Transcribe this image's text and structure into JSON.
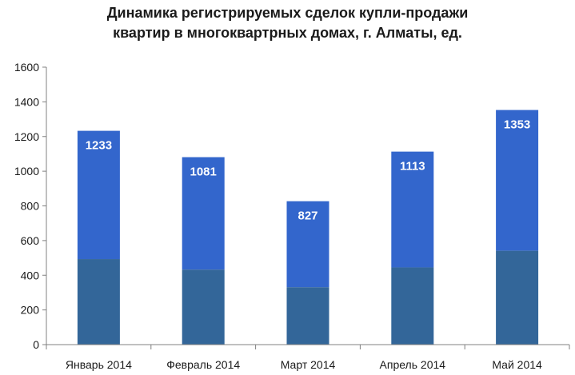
{
  "chart_data": {
    "type": "bar",
    "title_lines": [
      "Динамика регистрируемых  сделок купли-продажи",
      "квартир в многоквартрных домах, г. Алматы, ед."
    ],
    "categories": [
      "Январь 2014",
      "Февраль 2014",
      "Март 2014",
      "Апрель 2014",
      "Май 2014"
    ],
    "values": [
      1233,
      1081,
      827,
      1113,
      1353
    ],
    "value_labels": [
      "1233",
      "1081",
      "827",
      "1113",
      "1353"
    ],
    "ylim": [
      0,
      1600
    ],
    "yticks": [
      "0",
      "200",
      "400",
      "600",
      "800",
      "1000",
      "1200",
      "1400",
      "1600"
    ],
    "grid": false,
    "legend": "none",
    "colors": {
      "bar_top": "#3366CC",
      "bar_bottom": "#336699",
      "axis": "#808080"
    }
  }
}
